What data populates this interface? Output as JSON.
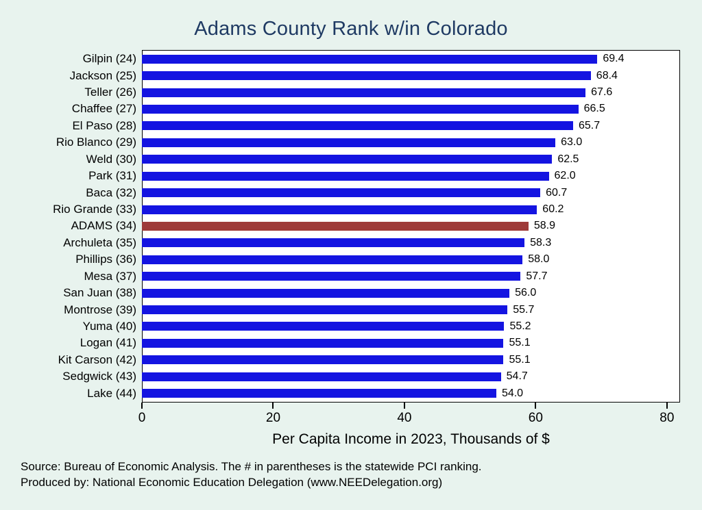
{
  "chart_data": {
    "type": "bar",
    "orientation": "horizontal",
    "title": "Adams County Rank w/in Colorado",
    "xlabel": "Per Capita Income in 2023, Thousands of $",
    "categories": [
      "Gilpin (24)",
      "Jackson (25)",
      "Teller (26)",
      "Chaffee (27)",
      "El Paso (28)",
      "Rio Blanco (29)",
      "Weld (30)",
      "Park (31)",
      "Baca (32)",
      "Rio Grande (33)",
      "ADAMS (34)",
      "Archuleta (35)",
      "Phillips (36)",
      "Mesa (37)",
      "San Juan (38)",
      "Montrose (39)",
      "Yuma (40)",
      "Logan (41)",
      "Kit Carson (42)",
      "Sedgwick (43)",
      "Lake (44)"
    ],
    "values": [
      69.4,
      68.4,
      67.6,
      66.5,
      65.7,
      63.0,
      62.5,
      62.0,
      60.7,
      60.2,
      58.9,
      58.3,
      58.0,
      57.7,
      56.0,
      55.7,
      55.2,
      55.1,
      55.1,
      54.7,
      54.0
    ],
    "highlight_category": "ADAMS (34)",
    "x_ticks": [
      0,
      20,
      40,
      60,
      80
    ],
    "x_max": 82,
    "grid": false,
    "legend": "none",
    "colors": {
      "bar": "#1414e1",
      "highlight": "#9e3a39",
      "title": "#1f3a63",
      "background": "#e8f3ee",
      "plot_background": "#ffffff"
    }
  },
  "footer": {
    "line1": "Source: Bureau of Economic Analysis. The # in parentheses is the statewide PCI ranking.",
    "line2": "Produced by: National Economic Education Delegation (www.NEEDelegation.org)"
  }
}
